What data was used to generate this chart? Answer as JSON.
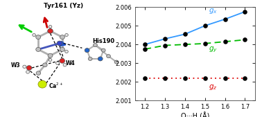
{
  "gx_x": [
    1.2,
    1.3,
    1.4,
    1.5,
    1.6,
    1.7
  ],
  "gx_y": [
    2.004,
    2.0043,
    2.00455,
    2.005,
    2.00535,
    2.00575
  ],
  "gy_x": [
    1.2,
    1.3,
    1.4,
    1.5,
    1.6,
    1.7
  ],
  "gy_y": [
    2.00375,
    2.00395,
    2.004,
    2.00405,
    2.00415,
    2.00425
  ],
  "gz_x": [
    1.2,
    1.3,
    1.4,
    1.5,
    1.6,
    1.7
  ],
  "gz_y": [
    2.0022,
    2.0022,
    2.0022,
    2.0022,
    2.0022,
    2.0022
  ],
  "ylim": [
    2.001,
    2.006
  ],
  "xlim": [
    1.15,
    1.75
  ],
  "yticks": [
    2.001,
    2.002,
    2.003,
    2.004,
    2.005,
    2.006
  ],
  "xticks": [
    1.2,
    1.3,
    1.4,
    1.5,
    1.6,
    1.7
  ],
  "xlabel": "O···H (Å)",
  "gx_label": "$g_x$",
  "gy_label": "$g_y$",
  "gz_label": "$g_z$",
  "gx_color": "#3399ff",
  "gy_color": "#00bb00",
  "gz_color": "#dd0000",
  "dot_color": "#000000",
  "bg_color": "#ffffff",
  "mol_bg": "#d8d8d8",
  "title_text": "Tyr161 (Yz)",
  "his_text": "His190",
  "w3_text": "W3",
  "w4_text": "W4",
  "ca_text": "Ca$^{2+}$"
}
